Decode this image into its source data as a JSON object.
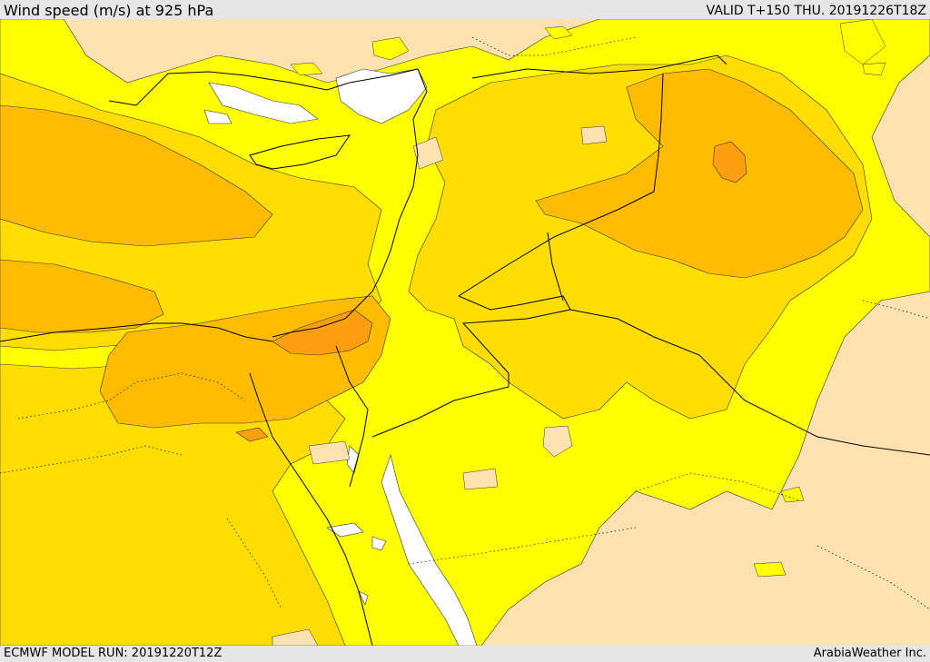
{
  "header": {
    "title": "Wind speed (m/s) at 925 hPa",
    "valid_time": "VALID T+150 THU. 20191226T18Z"
  },
  "footer": {
    "model_run": "ECMWF MODEL RUN: 20191220T12Z",
    "credit": "ArabiaWeather Inc."
  },
  "colors": {
    "lightest": "#fce2b0",
    "yellow": "#ffff00",
    "gold": "#ffdd00",
    "amber": "#ffbb00",
    "orange": "#ff9f10",
    "water": "#ffffff",
    "border": "#000000"
  }
}
